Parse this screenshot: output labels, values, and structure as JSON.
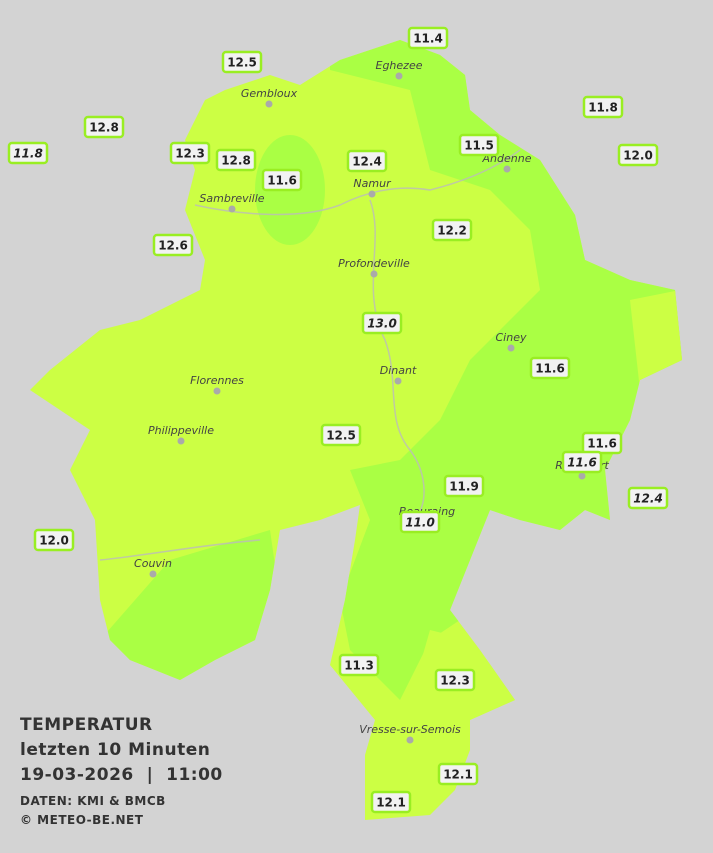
{
  "title": {
    "line1": "TEMPERATUR",
    "line2": "letzten 10 Minuten",
    "line3": "19-03-2026  |  11:00",
    "source": "DATEN: KMI & BMCB",
    "copyright": "© METEO-BE.NET"
  },
  "cities": [
    {
      "name": "Eghezee"
    },
    {
      "name": "Gembloux"
    },
    {
      "name": "Andenne"
    },
    {
      "name": "Namur"
    },
    {
      "name": "Sambreville"
    },
    {
      "name": "Profondeville"
    },
    {
      "name": "Ciney"
    },
    {
      "name": "Dinant"
    },
    {
      "name": "Florennes"
    },
    {
      "name": "Philippeville"
    },
    {
      "name": "Rochefort"
    },
    {
      "name": "Beauraing"
    },
    {
      "name": "Couvin"
    },
    {
      "name": "Vresse-sur-Semois"
    }
  ],
  "stations": [
    {
      "value": "12.5"
    },
    {
      "value": "11.4"
    },
    {
      "value": "12.8"
    },
    {
      "value": "11.8",
      "italic": true
    },
    {
      "value": "12.3"
    },
    {
      "value": "12.8"
    },
    {
      "value": "11.6"
    },
    {
      "value": "12.4"
    },
    {
      "value": "11.5"
    },
    {
      "value": "11.8"
    },
    {
      "value": "12.0"
    },
    {
      "value": "12.6"
    },
    {
      "value": "12.2"
    },
    {
      "value": "13.0",
      "italic": true
    },
    {
      "value": "11.6"
    },
    {
      "value": "12.5"
    },
    {
      "value": "11.6"
    },
    {
      "value": "11.6",
      "italic": true
    },
    {
      "value": "11.9"
    },
    {
      "value": "12.4",
      "italic": true
    },
    {
      "value": "11.0",
      "italic": true
    },
    {
      "value": "12.0"
    },
    {
      "value": "11.3"
    },
    {
      "value": "12.3"
    },
    {
      "value": "12.1"
    },
    {
      "value": "12.1"
    }
  ]
}
